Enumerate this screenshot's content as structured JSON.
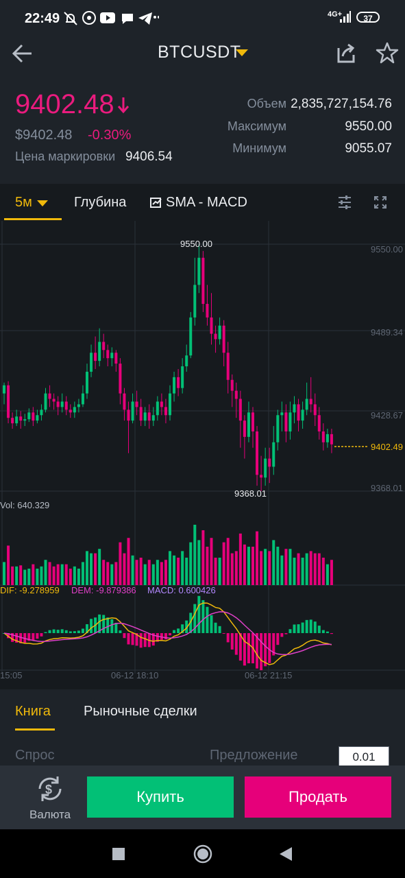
{
  "status_bar": {
    "time": "22:49",
    "icons": [
      "notifications-off-icon",
      "whatsapp-icon",
      "youtube-icon",
      "chat-icon",
      "telegram-icon",
      "more-icon"
    ],
    "network": "4G+",
    "battery": "37"
  },
  "header": {
    "symbol": "BTCUSDT",
    "icons": [
      "back-arrow-icon",
      "dropdown-caret-icon",
      "share-icon",
      "star-icon"
    ]
  },
  "price": {
    "last": "9402.48",
    "usd": "$9402.48",
    "change": "-0.30%",
    "mark_label": "Цена маркировки",
    "mark_value": "9406.54"
  },
  "stats": [
    {
      "label": "Объем",
      "value": "2,835,727,154.76"
    },
    {
      "label": "Максимум",
      "value": "9550.00"
    },
    {
      "label": "Минимум",
      "value": "9055.07"
    }
  ],
  "chart_tabs": {
    "interval": "5м",
    "depth": "Глубина",
    "indicators": "SMA - MACD"
  },
  "chart_data": {
    "type": "candlestick",
    "price_axis": [
      "9550.00",
      "9489.34",
      "9428.67",
      "9368.01"
    ],
    "ylim": [
      9368.01,
      9550.0
    ],
    "high_label": "9550.00",
    "low_label": "9368.01",
    "last_price_label": "9402.49",
    "volume_label": "Vol: 640.329",
    "macd": {
      "dif": "DIF: -9.278959",
      "dem": "DEM: -9.879386",
      "macd": "MACD: 0.600426"
    },
    "time_labels": [
      "15:05",
      "06-12 18:10",
      "06-12 21:15"
    ],
    "colors": {
      "up": "#02c076",
      "down": "#e6007a",
      "dif": "#f0b90b",
      "dem": "#e040c8",
      "macd_label": "#b388ff"
    },
    "candles": [
      [
        9440,
        9446,
        9432,
        9448
      ],
      [
        9446,
        9422,
        9418,
        9449
      ],
      [
        9422,
        9418,
        9414,
        9426
      ],
      [
        9418,
        9423,
        9416,
        9428
      ],
      [
        9423,
        9420,
        9414,
        9427
      ],
      [
        9420,
        9421,
        9416,
        9425
      ],
      [
        9421,
        9426,
        9419,
        9429
      ],
      [
        9426,
        9420,
        9416,
        9430
      ],
      [
        9420,
        9424,
        9418,
        9428
      ],
      [
        9424,
        9428,
        9420,
        9432
      ],
      [
        9428,
        9440,
        9426,
        9444
      ],
      [
        9440,
        9436,
        9430,
        9446
      ],
      [
        9436,
        9434,
        9428,
        9440
      ],
      [
        9434,
        9430,
        9424,
        9438
      ],
      [
        9430,
        9434,
        9426,
        9440
      ],
      [
        9434,
        9428,
        9424,
        9438
      ],
      [
        9428,
        9426,
        9422,
        9432
      ],
      [
        9426,
        9430,
        9422,
        9434
      ],
      [
        9430,
        9432,
        9426,
        9436
      ],
      [
        9432,
        9440,
        9430,
        9446
      ],
      [
        9440,
        9456,
        9436,
        9462
      ],
      [
        9456,
        9470,
        9452,
        9476
      ],
      [
        9470,
        9464,
        9458,
        9482
      ],
      [
        9464,
        9478,
        9460,
        9488
      ],
      [
        9478,
        9472,
        9466,
        9484
      ],
      [
        9472,
        9466,
        9460,
        9476
      ],
      [
        9466,
        9470,
        9460,
        9474
      ],
      [
        9470,
        9462,
        9456,
        9472
      ],
      [
        9462,
        9440,
        9432,
        9466
      ],
      [
        9440,
        9428,
        9420,
        9444
      ],
      [
        9428,
        9420,
        9396,
        9434
      ],
      [
        9420,
        9434,
        9418,
        9440
      ],
      [
        9434,
        9430,
        9424,
        9442
      ],
      [
        9430,
        9420,
        9416,
        9436
      ],
      [
        9420,
        9426,
        9416,
        9430
      ],
      [
        9426,
        9420,
        9414,
        9432
      ],
      [
        9420,
        9424,
        9416,
        9430
      ],
      [
        9424,
        9434,
        9420,
        9438
      ],
      [
        9434,
        9430,
        9424,
        9440
      ],
      [
        9430,
        9424,
        9418,
        9436
      ],
      [
        9424,
        9440,
        9420,
        9446
      ],
      [
        9440,
        9452,
        9434,
        9456
      ],
      [
        9452,
        9444,
        9438,
        9458
      ],
      [
        9444,
        9460,
        9440,
        9466
      ],
      [
        9460,
        9468,
        9456,
        9476
      ],
      [
        9468,
        9496,
        9466,
        9500
      ],
      [
        9496,
        9520,
        9490,
        9540
      ],
      [
        9520,
        9540,
        9514,
        9550
      ],
      [
        9540,
        9506,
        9500,
        9545
      ],
      [
        9506,
        9496,
        9490,
        9520
      ],
      [
        9496,
        9484,
        9476,
        9514
      ],
      [
        9484,
        9480,
        9470,
        9490
      ],
      [
        9480,
        9490,
        9476,
        9496
      ],
      [
        9490,
        9470,
        9460,
        9494
      ],
      [
        9470,
        9450,
        9440,
        9478
      ],
      [
        9450,
        9442,
        9430,
        9454
      ],
      [
        9442,
        9436,
        9422,
        9448
      ],
      [
        9436,
        9420,
        9400,
        9442
      ],
      [
        9420,
        9408,
        9392,
        9424
      ],
      [
        9408,
        9426,
        9404,
        9434
      ],
      [
        9426,
        9412,
        9400,
        9430
      ],
      [
        9412,
        9380,
        9372,
        9416
      ],
      [
        9380,
        9378,
        9368,
        9394
      ],
      [
        9378,
        9392,
        9372,
        9400
      ],
      [
        9392,
        9386,
        9374,
        9400
      ],
      [
        9386,
        9404,
        9380,
        9416
      ],
      [
        9404,
        9424,
        9398,
        9428
      ],
      [
        9424,
        9426,
        9412,
        9434
      ],
      [
        9426,
        9412,
        9404,
        9432
      ],
      [
        9412,
        9426,
        9406,
        9434
      ],
      [
        9426,
        9432,
        9418,
        9438
      ],
      [
        9432,
        9420,
        9412,
        9436
      ],
      [
        9420,
        9428,
        9414,
        9434
      ],
      [
        9428,
        9436,
        9424,
        9448
      ],
      [
        9436,
        9432,
        9426,
        9452
      ],
      [
        9432,
        9424,
        9416,
        9440
      ],
      [
        9424,
        9412,
        9406,
        9430
      ],
      [
        9412,
        9404,
        9398,
        9418
      ],
      [
        9404,
        9410,
        9400,
        9414
      ],
      [
        9410,
        9402.49,
        9396,
        9414
      ]
    ]
  },
  "book_tabs": {
    "book": "Книга",
    "trades": "Рыночные сделки"
  },
  "book_header": {
    "bid": "Спрос",
    "ask": "Предложение",
    "step": "0.01"
  },
  "actions": {
    "convert": "Валюта",
    "buy": "Купить",
    "sell": "Продать"
  }
}
